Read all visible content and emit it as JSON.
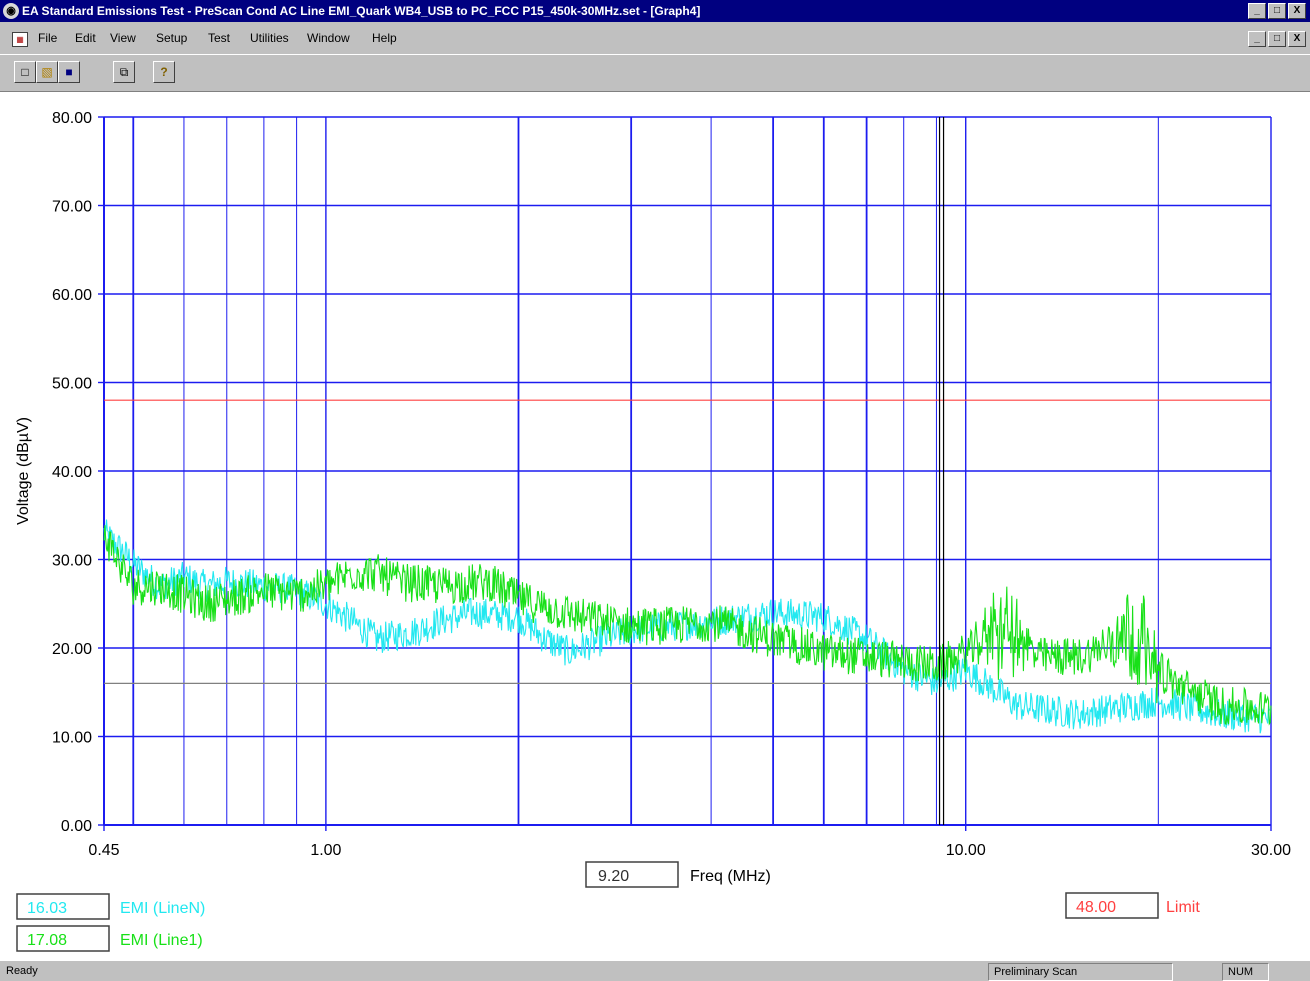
{
  "window": {
    "title": "EA Standard Emissions Test - PreScan Cond AC Line EMI_Quark WB4_USB to PC_FCC P15_450k-30MHz.set - [Graph4]",
    "controls": [
      "_",
      "□",
      "X"
    ]
  },
  "menu": {
    "items": [
      "File",
      "Edit",
      "View",
      "Setup",
      "Test",
      "Utilities",
      "Window",
      "Help"
    ]
  },
  "toolbar": {
    "buttons": [
      {
        "name": "new-icon",
        "glyph": "□"
      },
      {
        "name": "open-icon",
        "glyph": "▧"
      },
      {
        "name": "save-icon",
        "glyph": "■"
      },
      {
        "name": "copy-icon",
        "glyph": "⧉"
      },
      {
        "name": "help-icon",
        "glyph": "?"
      }
    ]
  },
  "readouts": {
    "cursor_freq": "9.20",
    "freq_label": "Freq (MHz)",
    "line_n_value": "16.03",
    "line_n_label": "EMI (LineN)",
    "line_1_value": "17.08",
    "line_1_label": "EMI (Line1)",
    "limit_value": "48.00",
    "limit_label": "Limit"
  },
  "status": {
    "left": "Ready",
    "scan": "Preliminary Scan",
    "num": "NUM"
  },
  "colors": {
    "grid": "#1c1cf0",
    "axis": "#1c1cf0",
    "line_n": "#22e8f0",
    "line_1": "#18e018",
    "limit": "#ff4040",
    "cursor": "#000000",
    "marker": "#808080"
  },
  "chart_data": {
    "type": "line",
    "title": "",
    "xlabel": "Freq (MHz)",
    "ylabel": "Voltage (dBµV)",
    "x_scale": "log",
    "xlim": [
      0.45,
      30.0
    ],
    "ylim": [
      0,
      80
    ],
    "y_ticks": [
      "0.00",
      "10.00",
      "20.00",
      "30.00",
      "40.00",
      "50.00",
      "60.00",
      "70.00",
      "80.00"
    ],
    "x_ticks": [
      {
        "value": 0.45,
        "label": "0.45"
      },
      {
        "value": 1.0,
        "label": "1.00"
      },
      {
        "value": 10.0,
        "label": "10.00"
      },
      {
        "value": 30.0,
        "label": "30.00"
      }
    ],
    "x_grid_major": [
      0.5,
      2.0,
      3.0,
      5.0,
      6.0,
      7.0
    ],
    "x_grid_minor": [
      0.6,
      0.7,
      0.8,
      0.9,
      4.0,
      8.0,
      9.0,
      20.0
    ],
    "grid": true,
    "cursor_x": 9.2,
    "limit": 48.0,
    "marker_level": 16.0,
    "series": [
      {
        "name": "EMI (LineN)",
        "noise": 1.8,
        "points": [
          [
            0.45,
            33
          ],
          [
            0.48,
            31
          ],
          [
            0.5,
            29.5
          ],
          [
            0.55,
            27
          ],
          [
            0.6,
            28
          ],
          [
            0.65,
            27
          ],
          [
            0.7,
            27.5
          ],
          [
            0.8,
            27
          ],
          [
            0.9,
            26.5
          ],
          [
            1.0,
            25
          ],
          [
            1.1,
            23
          ],
          [
            1.2,
            21
          ],
          [
            1.3,
            21.5
          ],
          [
            1.4,
            22
          ],
          [
            1.5,
            23
          ],
          [
            1.7,
            24
          ],
          [
            2.0,
            23.5
          ],
          [
            2.2,
            21
          ],
          [
            2.4,
            19.5
          ],
          [
            2.6,
            20.5
          ],
          [
            3.0,
            22
          ],
          [
            3.5,
            22.5
          ],
          [
            4.0,
            23
          ],
          [
            5.0,
            24
          ],
          [
            6.0,
            23.5
          ],
          [
            7.0,
            21
          ],
          [
            8.0,
            17.5
          ],
          [
            9.0,
            16
          ],
          [
            10.0,
            17.5
          ],
          [
            11.0,
            15.5
          ],
          [
            12.0,
            13.5
          ],
          [
            15.0,
            12.5
          ],
          [
            20.0,
            14
          ],
          [
            25.0,
            12.5
          ],
          [
            30.0,
            12
          ]
        ]
      },
      {
        "name": "EMI (Line1)",
        "noise": 2.2,
        "points": [
          [
            0.45,
            33
          ],
          [
            0.48,
            29
          ],
          [
            0.5,
            27
          ],
          [
            0.55,
            27
          ],
          [
            0.6,
            26
          ],
          [
            0.65,
            25
          ],
          [
            0.7,
            25.5
          ],
          [
            0.8,
            26.5
          ],
          [
            0.9,
            26
          ],
          [
            1.0,
            27
          ],
          [
            1.1,
            28.5
          ],
          [
            1.2,
            28.5
          ],
          [
            1.3,
            27.5
          ],
          [
            1.5,
            27
          ],
          [
            1.8,
            27.5
          ],
          [
            2.0,
            25.5
          ],
          [
            2.5,
            23.5
          ],
          [
            3.0,
            22.5
          ],
          [
            3.5,
            22.5
          ],
          [
            4.0,
            23
          ],
          [
            5.0,
            21
          ],
          [
            6.0,
            19.5
          ],
          [
            7.0,
            19
          ],
          [
            8.0,
            18.5
          ],
          [
            9.0,
            18
          ],
          [
            10.0,
            19.5
          ],
          [
            11.0,
            21
          ],
          [
            12.0,
            20
          ],
          [
            13.0,
            19
          ],
          [
            15.0,
            19
          ],
          [
            18.0,
            21
          ],
          [
            20.0,
            17
          ],
          [
            25.0,
            13.5
          ],
          [
            30.0,
            13
          ]
        ]
      }
    ],
    "bursts": [
      {
        "x_from": 10.2,
        "x_to": 13.0,
        "peak": 28.0
      },
      {
        "x_from": 16.0,
        "x_to": 21.0,
        "peak": 29.0
      }
    ]
  }
}
